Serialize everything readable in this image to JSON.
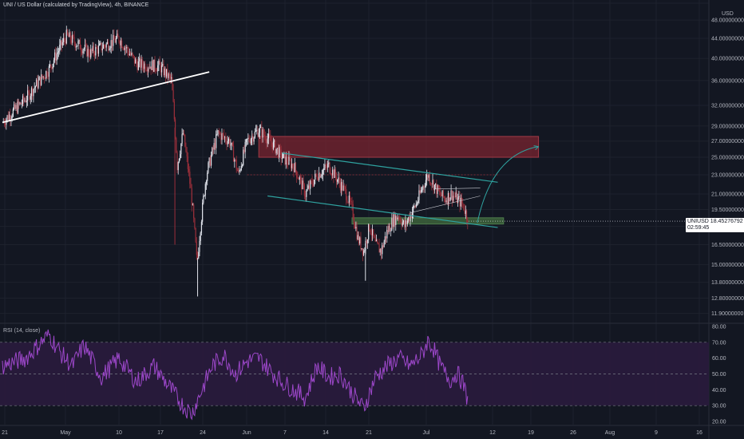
{
  "header": {
    "title": "UNI / US Dollar (calculated by TradingView), 4h, BINANCE"
  },
  "rsi_panel": {
    "title": "RSI (14, close)"
  },
  "last_price": {
    "symbol": "UNIUSD",
    "value": "18.45276792",
    "countdown": "02:59:45"
  },
  "colors": {
    "background": "#131722",
    "up": "#e0e3eb",
    "down": "#9b2f3a",
    "rsi_line": "#9c47c9",
    "rsi_band": "#2a1b3d",
    "resistance_zone": "#7a2430",
    "support_zone": "#3b5e3a",
    "channel": "#2fa3a0"
  },
  "chart_data": [
    {
      "type": "candlestick",
      "title": "UNI / US Dollar (calculated by TradingView), 4h, BINANCE",
      "x_ticks": [
        "21",
        "May",
        "10",
        "17",
        "24",
        "Jun",
        "7",
        "14",
        "21",
        "Jul",
        "12",
        "19",
        "26",
        "Aug",
        "9",
        "16"
      ],
      "y_ticks": [
        "52.00000000",
        "48.00000000",
        "44.00000000",
        "40.00000000",
        "36.00000000",
        "32.00000000",
        "29.00000000",
        "27.00000000",
        "25.00000000",
        "23.00000000",
        "21.00000000",
        "19.50000000",
        "18.00000000",
        "16.50000000",
        "15.00000000",
        "13.80000000",
        "12.80000000",
        "11.90000000"
      ],
      "y_unit": "USD",
      "y_scale": "log",
      "ylim": [
        11.4,
        52
      ],
      "grid": true,
      "anchors": [
        {
          "d": 0,
          "p": 29.5
        },
        {
          "d": 4,
          "p": 33
        },
        {
          "d": 8,
          "p": 38
        },
        {
          "d": 11,
          "p": 44.5
        },
        {
          "d": 15,
          "p": 41
        },
        {
          "d": 20,
          "p": 44
        },
        {
          "d": 23,
          "p": 39
        },
        {
          "d": 27,
          "p": 38.5
        },
        {
          "d": 29,
          "p": 36
        },
        {
          "d": 30,
          "p": 24
        },
        {
          "d": 31,
          "p": 28
        },
        {
          "d": 32.4,
          "p": 21
        },
        {
          "d": 33.4,
          "p": 15
        },
        {
          "d": 35,
          "p": 23
        },
        {
          "d": 37,
          "p": 28
        },
        {
          "d": 39,
          "p": 27
        },
        {
          "d": 40.5,
          "p": 23
        },
        {
          "d": 42,
          "p": 27
        },
        {
          "d": 44,
          "p": 28.5
        },
        {
          "d": 46,
          "p": 27
        },
        {
          "d": 48,
          "p": 25
        },
        {
          "d": 50,
          "p": 24
        },
        {
          "d": 52,
          "p": 21
        },
        {
          "d": 54,
          "p": 23
        },
        {
          "d": 56,
          "p": 24
        },
        {
          "d": 58,
          "p": 22
        },
        {
          "d": 59,
          "p": 21
        },
        {
          "d": 60,
          "p": 19.5
        },
        {
          "d": 61,
          "p": 17
        },
        {
          "d": 62,
          "p": 16
        },
        {
          "d": 63,
          "p": 18
        },
        {
          "d": 64,
          "p": 16.5
        },
        {
          "d": 65,
          "p": 16
        },
        {
          "d": 66,
          "p": 17.5
        },
        {
          "d": 67,
          "p": 18.5
        },
        {
          "d": 68,
          "p": 19
        },
        {
          "d": 69,
          "p": 18
        },
        {
          "d": 70,
          "p": 19
        },
        {
          "d": 71,
          "p": 20
        },
        {
          "d": 72,
          "p": 21.5
        },
        {
          "d": 73,
          "p": 23
        },
        {
          "d": 74,
          "p": 22
        },
        {
          "d": 75,
          "p": 21
        },
        {
          "d": 76,
          "p": 20.5
        },
        {
          "d": 77,
          "p": 21
        },
        {
          "d": 78,
          "p": 20.5
        },
        {
          "d": 79,
          "p": 20
        },
        {
          "d": 80,
          "p": 18.45
        }
      ],
      "spikes": [
        {
          "d": 29.6,
          "low": 16.5
        },
        {
          "d": 33.5,
          "low": 12.9
        },
        {
          "d": 62.3,
          "low": 13.9
        }
      ],
      "annotations": {
        "trendline": {
          "from": {
            "d": 0,
            "p": 29.5
          },
          "to": {
            "d": 35.5,
            "p": 37.5
          }
        },
        "resistance_zone": {
          "d_from": 44,
          "d_to": 92,
          "p_low": 25,
          "p_high": 27.6
        },
        "support_zone": {
          "d_from": 60,
          "d_to": 86,
          "p_low": 18.2,
          "p_high": 18.75
        },
        "channel_upper": {
          "from": {
            "d": 48,
            "p": 25.5
          },
          "to": {
            "d": 85,
            "p": 22.2
          }
        },
        "channel_lower": {
          "from": {
            "d": 45.5,
            "p": 20.8
          },
          "to": {
            "d": 85,
            "p": 17.9
          }
        },
        "projection": {
          "from": {
            "d": 81.5,
            "p": 18.3
          },
          "to": {
            "d": 92,
            "p": 26.3
          }
        }
      }
    },
    {
      "type": "line",
      "title": "RSI (14, close)",
      "y_ticks": [
        "80.00",
        "70.00",
        "60.00",
        "50.00",
        "40.00",
        "30.00",
        "20.00"
      ],
      "ylim": [
        18,
        82
      ],
      "bands": [
        70,
        50,
        30
      ],
      "anchors": [
        {
          "d": 0,
          "v": 55
        },
        {
          "d": 4,
          "v": 60
        },
        {
          "d": 8,
          "v": 75
        },
        {
          "d": 10,
          "v": 63
        },
        {
          "d": 12,
          "v": 55
        },
        {
          "d": 14,
          "v": 68
        },
        {
          "d": 17,
          "v": 48
        },
        {
          "d": 20,
          "v": 60
        },
        {
          "d": 23,
          "v": 45
        },
        {
          "d": 26,
          "v": 55
        },
        {
          "d": 29,
          "v": 40
        },
        {
          "d": 31,
          "v": 30
        },
        {
          "d": 32.5,
          "v": 25
        },
        {
          "d": 34,
          "v": 38
        },
        {
          "d": 36,
          "v": 55
        },
        {
          "d": 38,
          "v": 62
        },
        {
          "d": 40,
          "v": 50
        },
        {
          "d": 42,
          "v": 58
        },
        {
          "d": 44,
          "v": 60
        },
        {
          "d": 46,
          "v": 52
        },
        {
          "d": 48,
          "v": 45
        },
        {
          "d": 50,
          "v": 40
        },
        {
          "d": 52,
          "v": 35
        },
        {
          "d": 54,
          "v": 55
        },
        {
          "d": 56,
          "v": 48
        },
        {
          "d": 58,
          "v": 50
        },
        {
          "d": 60,
          "v": 38
        },
        {
          "d": 62,
          "v": 28
        },
        {
          "d": 64,
          "v": 48
        },
        {
          "d": 66,
          "v": 55
        },
        {
          "d": 68,
          "v": 60
        },
        {
          "d": 70,
          "v": 55
        },
        {
          "d": 72,
          "v": 62
        },
        {
          "d": 73,
          "v": 71
        },
        {
          "d": 74,
          "v": 66
        },
        {
          "d": 75,
          "v": 56
        },
        {
          "d": 76,
          "v": 50
        },
        {
          "d": 77,
          "v": 46
        },
        {
          "d": 78,
          "v": 51
        },
        {
          "d": 79,
          "v": 44
        },
        {
          "d": 80,
          "v": 32
        }
      ]
    }
  ]
}
